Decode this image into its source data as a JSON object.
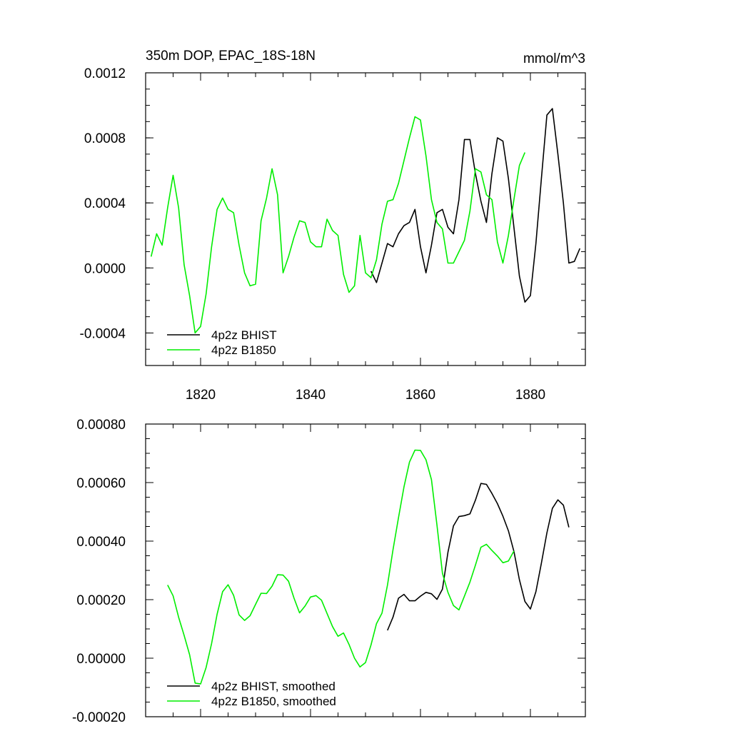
{
  "figure": {
    "title_left": "350m DOP, EPAC_18S-18N",
    "title_right": "mmol/m^3"
  },
  "colors": {
    "bhist": "#000000",
    "b1850": "#00ee00",
    "axis": "#000000"
  },
  "chart_data": [
    {
      "type": "line",
      "title": "350m DOP, EPAC_18S-18N",
      "units": "mmol/m^3",
      "xlim": [
        1810,
        1890
      ],
      "ylim": [
        -0.0006,
        0.0012
      ],
      "xticks": [
        1820,
        1840,
        1860,
        1880
      ],
      "xtick_labels": [
        "1820",
        "1840",
        "1860",
        "1880"
      ],
      "yticks": [
        -0.0004,
        0.0,
        0.0004,
        0.0008,
        0.0012
      ],
      "ytick_labels": [
        "-0.0004",
        "0.0000",
        "0.0004",
        "0.0008",
        "0.0012"
      ],
      "legend_position": "bottom-left",
      "series": [
        {
          "name": "4p2z BHIST",
          "color": "#000000",
          "x": [
            1851,
            1852,
            1853,
            1854,
            1855,
            1856,
            1857,
            1858,
            1859,
            1860,
            1861,
            1862,
            1863,
            1864,
            1865,
            1866,
            1867,
            1868,
            1869,
            1870,
            1871,
            1872,
            1873,
            1874,
            1875,
            1876,
            1877,
            1878,
            1879,
            1880,
            1881,
            1882,
            1883,
            1884,
            1885,
            1886,
            1887,
            1888,
            1889
          ],
          "y": [
            -2e-05,
            -9e-05,
            3e-05,
            0.00015,
            0.00013,
            0.00021,
            0.00026,
            0.00028,
            0.00036,
            0.00013,
            -3e-05,
            0.00014,
            0.00034,
            0.00036,
            0.00025,
            0.00021,
            0.00042,
            0.00079,
            0.00079,
            0.00058,
            0.00041,
            0.00028,
            0.00058,
            0.0008,
            0.00078,
            0.00055,
            0.00025,
            -5e-05,
            -0.00021,
            -0.00017,
            0.00015,
            0.00055,
            0.00094,
            0.00098,
            0.0007,
            0.0004,
            3e-05,
            4e-05,
            0.00012
          ]
        },
        {
          "name": "4p2z B1850",
          "color": "#00ee00",
          "x": [
            1811,
            1812,
            1813,
            1814,
            1815,
            1816,
            1817,
            1818,
            1819,
            1820,
            1821,
            1822,
            1823,
            1824,
            1825,
            1826,
            1827,
            1828,
            1829,
            1830,
            1831,
            1832,
            1833,
            1834,
            1835,
            1836,
            1837,
            1838,
            1839,
            1840,
            1841,
            1842,
            1843,
            1844,
            1845,
            1846,
            1847,
            1848,
            1849,
            1850,
            1851,
            1852,
            1853,
            1854,
            1855,
            1856,
            1857,
            1858,
            1859,
            1860,
            1861,
            1862,
            1863,
            1864,
            1865,
            1866,
            1867,
            1868,
            1869,
            1870,
            1871,
            1872,
            1873,
            1874,
            1875,
            1876,
            1877,
            1878,
            1879
          ],
          "y": [
            7e-05,
            0.00021,
            0.00014,
            0.00037,
            0.00057,
            0.00037,
            2e-05,
            -0.00017,
            -0.0004,
            -0.00036,
            -0.00016,
            0.00013,
            0.00036,
            0.00043,
            0.00036,
            0.00034,
            0.00014,
            -3e-05,
            -0.00011,
            -0.0001,
            0.00029,
            0.00043,
            0.00061,
            0.00045,
            -3e-05,
            7e-05,
            0.00019,
            0.00029,
            0.00028,
            0.00016,
            0.00013,
            0.00013,
            0.0003,
            0.00023,
            0.0002,
            -4e-05,
            -0.00015,
            -0.00011,
            0.0002,
            -3e-05,
            -6e-05,
            5e-05,
            0.00027,
            0.00041,
            0.00042,
            0.00052,
            0.00066,
            0.0008,
            0.00093,
            0.00091,
            0.00069,
            0.00042,
            0.00028,
            0.00024,
            3e-05,
            3e-05,
            0.0001,
            0.00017,
            0.00035,
            0.00061,
            0.00059,
            0.00045,
            0.00042,
            0.00016,
            3e-05,
            0.0002,
            0.00042,
            0.00063,
            0.00071
          ]
        }
      ]
    },
    {
      "type": "line",
      "xlim": [
        1810,
        1890
      ],
      "ylim": [
        -0.0002,
        0.0008
      ],
      "xticks": [
        1820,
        1840,
        1860,
        1880
      ],
      "xtick_labels": [],
      "yticks": [
        -0.0002,
        0.0,
        0.0002,
        0.0004,
        0.0006,
        0.0008
      ],
      "ytick_labels": [
        "-0.00020",
        "0.00000",
        "0.00020",
        "0.00040",
        "0.00060",
        "0.00080"
      ],
      "legend_position": "bottom-left",
      "series": [
        {
          "name": "4p2z BHIST, smoothed",
          "color": "#000000",
          "x": [
            1854,
            1855,
            1856,
            1857,
            1858,
            1859,
            1860,
            1861,
            1862,
            1863,
            1864,
            1865,
            1866,
            1867,
            1868,
            1869,
            1870,
            1871,
            1872,
            1873,
            1874,
            1875,
            1876,
            1877,
            1878,
            1879,
            1880,
            1881,
            1882,
            1883,
            1884,
            1885,
            1886,
            1887
          ],
          "y": [
            9.5e-05,
            0.00014,
            0.000205,
            0.000218,
            0.000196,
            0.000196,
            0.000212,
            0.000225,
            0.00022,
            0.000201,
            0.000236,
            0.000362,
            0.000452,
            0.000484,
            0.000487,
            0.000493,
            0.00054,
            0.000597,
            0.000594,
            0.000563,
            0.000528,
            0.000485,
            0.000435,
            0.000365,
            0.000268,
            0.000194,
            0.000168,
            0.000227,
            0.000325,
            0.000428,
            0.000512,
            0.000541,
            0.000523,
            0.000447
          ]
        },
        {
          "name": "4p2z B1850, smoothed",
          "color": "#00ee00",
          "x": [
            1814,
            1815,
            1816,
            1817,
            1818,
            1819,
            1820,
            1821,
            1822,
            1823,
            1824,
            1825,
            1826,
            1827,
            1828,
            1829,
            1830,
            1831,
            1832,
            1833,
            1834,
            1835,
            1836,
            1837,
            1838,
            1839,
            1840,
            1841,
            1842,
            1843,
            1844,
            1845,
            1846,
            1847,
            1848,
            1849,
            1850,
            1851,
            1852,
            1853,
            1854,
            1855,
            1856,
            1857,
            1858,
            1859,
            1860,
            1861,
            1862,
            1863,
            1864,
            1865,
            1866,
            1867,
            1868,
            1869,
            1870,
            1871,
            1872,
            1873,
            1874,
            1875,
            1876,
            1877
          ],
          "y": [
            0.00025,
            0.000213,
            0.00014,
            7.8e-05,
            1.2e-05,
            -8.5e-05,
            -8.8e-05,
            -3.2e-05,
            5e-05,
            0.00015,
            0.000227,
            0.000251,
            0.000215,
            0.000148,
            0.000129,
            0.000145,
            0.000184,
            0.000222,
            0.000221,
            0.000246,
            0.000285,
            0.000284,
            0.000263,
            0.000205,
            0.000155,
            0.000178,
            0.000209,
            0.000214,
            0.000198,
            0.000153,
            0.000108,
            7.5e-05,
            8.6e-05,
            4.7e-05,
            0.0,
            -3e-05,
            -1.5e-05,
            4.5e-05,
            0.000118,
            0.000154,
            0.00025,
            0.00037,
            0.00048,
            0.000585,
            0.00067,
            0.000711,
            0.00071,
            0.000678,
            0.00061,
            0.000455,
            0.00029,
            0.000225,
            0.00018,
            0.000165,
            0.000212,
            0.00026,
            0.000318,
            0.000379,
            0.000389,
            0.000368,
            0.000349,
            0.000326,
            0.000332,
            0.000366
          ]
        }
      ]
    }
  ]
}
